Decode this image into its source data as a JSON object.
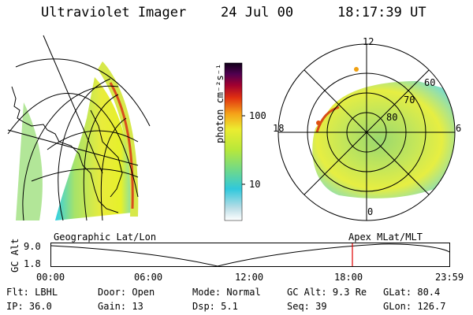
{
  "header": {
    "instrument": "Ultraviolet Imager",
    "date": "24 Jul 00",
    "time": "18:17:39 UT"
  },
  "colorbar": {
    "label": "photon cm⁻²s⁻¹",
    "ticks": [
      "100",
      "10"
    ]
  },
  "left_panel": {
    "caption": "Geographic Lat/Lon"
  },
  "right_panel": {
    "caption": "Apex MLat/MLT",
    "mlt_labels": [
      "12",
      "18",
      "6",
      "0"
    ],
    "mlat_labels": [
      "60",
      "70",
      "80"
    ]
  },
  "altitude_plot": {
    "ylabel": "GC Alt",
    "yticks": [
      "9.0",
      "1.8"
    ],
    "xticks": [
      "00:00",
      "06:00",
      "12:00",
      "18:00",
      "23:59"
    ],
    "marker_time": "18:17:39"
  },
  "info": {
    "row1": [
      {
        "key": "Flt:",
        "val": "LBHL"
      },
      {
        "key": "Door:",
        "val": "Open"
      },
      {
        "key": "Mode:",
        "val": "Normal"
      },
      {
        "key": "GC Alt:",
        "val": "9.3 Re"
      },
      {
        "key": "GLat:",
        "val": "80.4"
      }
    ],
    "row2": [
      {
        "key": "IP:",
        "val": "36.0"
      },
      {
        "key": "Gain:",
        "val": "13"
      },
      {
        "key": "Dsp:",
        "val": "5.1"
      },
      {
        "key": "Seq:",
        "val": "39"
      },
      {
        "key": "GLon:",
        "val": "126.7"
      }
    ]
  },
  "colors": {
    "marker": "#e00000"
  }
}
